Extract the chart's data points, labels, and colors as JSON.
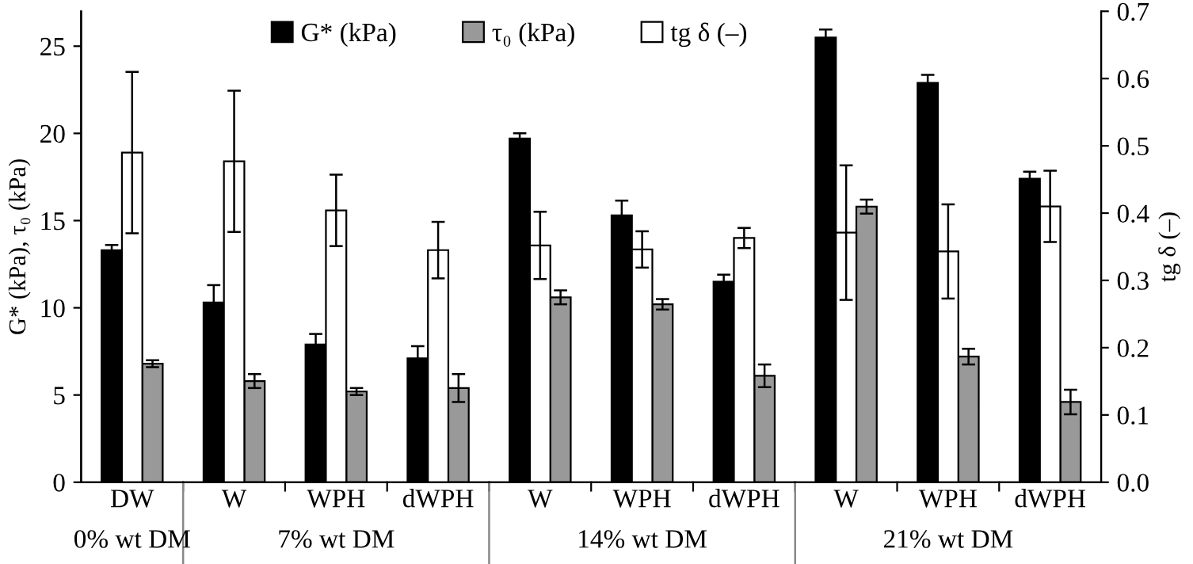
{
  "chart_data": {
    "type": "bar",
    "categories": [
      "DW",
      "W",
      "WPH",
      "dWPH",
      "W",
      "WPH",
      "dWPH",
      "W",
      "WPH",
      "dWPH"
    ],
    "ylabel": "G* (kPa), τ₀ (kPa)",
    "y2label": "tg δ (–)",
    "ylim": [
      0,
      27
    ],
    "yticks": [
      0,
      5,
      10,
      15,
      20,
      25
    ],
    "y2lim": [
      0,
      0.7
    ],
    "y2ticks": [
      {
        "value": 0,
        "label": "0.0"
      },
      0.1,
      0.2,
      0.3,
      0.4,
      0.5,
      0.6,
      0.7
    ],
    "series": [
      {
        "name": "G* (kPa)",
        "color": "#000000",
        "values": [
          13.3,
          10.3,
          7.9,
          7.1,
          19.7,
          15.3,
          11.5,
          25.5,
          22.9,
          17.4
        ],
        "errors": [
          0.3,
          1.0,
          0.6,
          0.7,
          0.3,
          0.85,
          0.4,
          0.45,
          0.45,
          0.4
        ]
      },
      {
        "name": "tg δ (–)",
        "color": "#ffffff",
        "axis": "y2",
        "values": [
          0.49,
          0.477,
          0.404,
          0.345,
          0.352,
          0.346,
          0.363,
          0.371,
          0.343,
          0.41
        ],
        "errors": [
          0.12,
          0.105,
          0.053,
          0.042,
          0.05,
          0.027,
          0.015,
          0.1,
          0.07,
          0.053
        ]
      },
      {
        "name": "τ₀ (kPa)",
        "color": "#999999",
        "values": [
          6.8,
          5.8,
          5.2,
          5.4,
          10.6,
          10.2,
          6.1,
          15.8,
          7.2,
          4.6
        ],
        "errors": [
          0.2,
          0.4,
          0.2,
          0.8,
          0.4,
          0.3,
          0.65,
          0.4,
          0.45,
          0.7
        ]
      }
    ],
    "legend": "top",
    "grid": false,
    "annotations": [
      "0% wt DM",
      "7% wt DM",
      "14% wt DM",
      "21% wt DM"
    ]
  }
}
